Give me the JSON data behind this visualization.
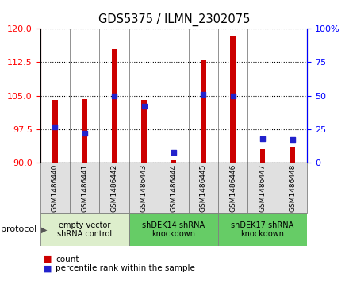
{
  "title": "GDS5375 / ILMN_2302075",
  "samples": [
    "GSM1486440",
    "GSM1486441",
    "GSM1486442",
    "GSM1486443",
    "GSM1486444",
    "GSM1486445",
    "GSM1486446",
    "GSM1486447",
    "GSM1486448"
  ],
  "counts": [
    104.0,
    104.2,
    115.5,
    104.0,
    90.5,
    113.0,
    118.5,
    93.0,
    93.5
  ],
  "percentiles": [
    27,
    22,
    50,
    42,
    8,
    51,
    50,
    18,
    17
  ],
  "ylim": [
    90,
    120
  ],
  "y2lim": [
    0,
    100
  ],
  "yticks": [
    90,
    97.5,
    105,
    112.5,
    120
  ],
  "y2ticks": [
    0,
    25,
    50,
    75,
    100
  ],
  "bar_color": "#cc0000",
  "dot_color": "#2222cc",
  "groups": [
    {
      "label": "empty vector\nshRNA control",
      "start": 0,
      "end": 3,
      "color": "#ddeecc"
    },
    {
      "label": "shDEK14 shRNA\nknockdown",
      "start": 3,
      "end": 6,
      "color": "#66cc66"
    },
    {
      "label": "shDEK17 shRNA\nknockdown",
      "start": 6,
      "end": 9,
      "color": "#66cc66"
    }
  ],
  "protocol_label": "protocol",
  "legend_count": "count",
  "legend_percentile": "percentile rank within the sample",
  "bar_width": 0.18,
  "dot_size": 22
}
